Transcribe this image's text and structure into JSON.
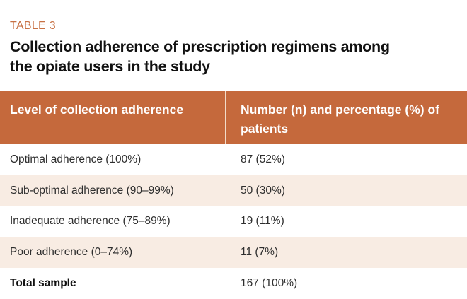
{
  "figure": {
    "label": "TABLE 3",
    "title": "Collection adherence of prescription regimens among the opiate users in the study"
  },
  "colors": {
    "header_bg": "#C5693C",
    "label_orange": "#C87144",
    "alt_row_bg": "#F8ECE3",
    "body_divider": "#9E9E9E",
    "header_divider": "#F2DCC9",
    "header_text": "#FFFFFF",
    "body_text": "#2E2E2E"
  },
  "chart_data": {
    "type": "table",
    "title": "Collection adherence of prescription regimens among the opiate users in the study",
    "columns": [
      "Level of collection adherence",
      "Number (n) and percentage (%) of patients"
    ],
    "rows": [
      [
        "Optimal adherence (100%)",
        "87 (52%)"
      ],
      [
        "Sub-optimal adherence (90–99%)",
        "50 (30%)"
      ],
      [
        "Inadequate adherence (75–89%)",
        "19 (11%)"
      ],
      [
        "Poor adherence (0–74%)",
        "11 (7%)"
      ],
      [
        "Total sample",
        "167 (100%)"
      ]
    ],
    "layout": {
      "striped_rows": [
        1,
        3
      ],
      "bold_rows": [
        4
      ],
      "column_divider": true
    }
  }
}
